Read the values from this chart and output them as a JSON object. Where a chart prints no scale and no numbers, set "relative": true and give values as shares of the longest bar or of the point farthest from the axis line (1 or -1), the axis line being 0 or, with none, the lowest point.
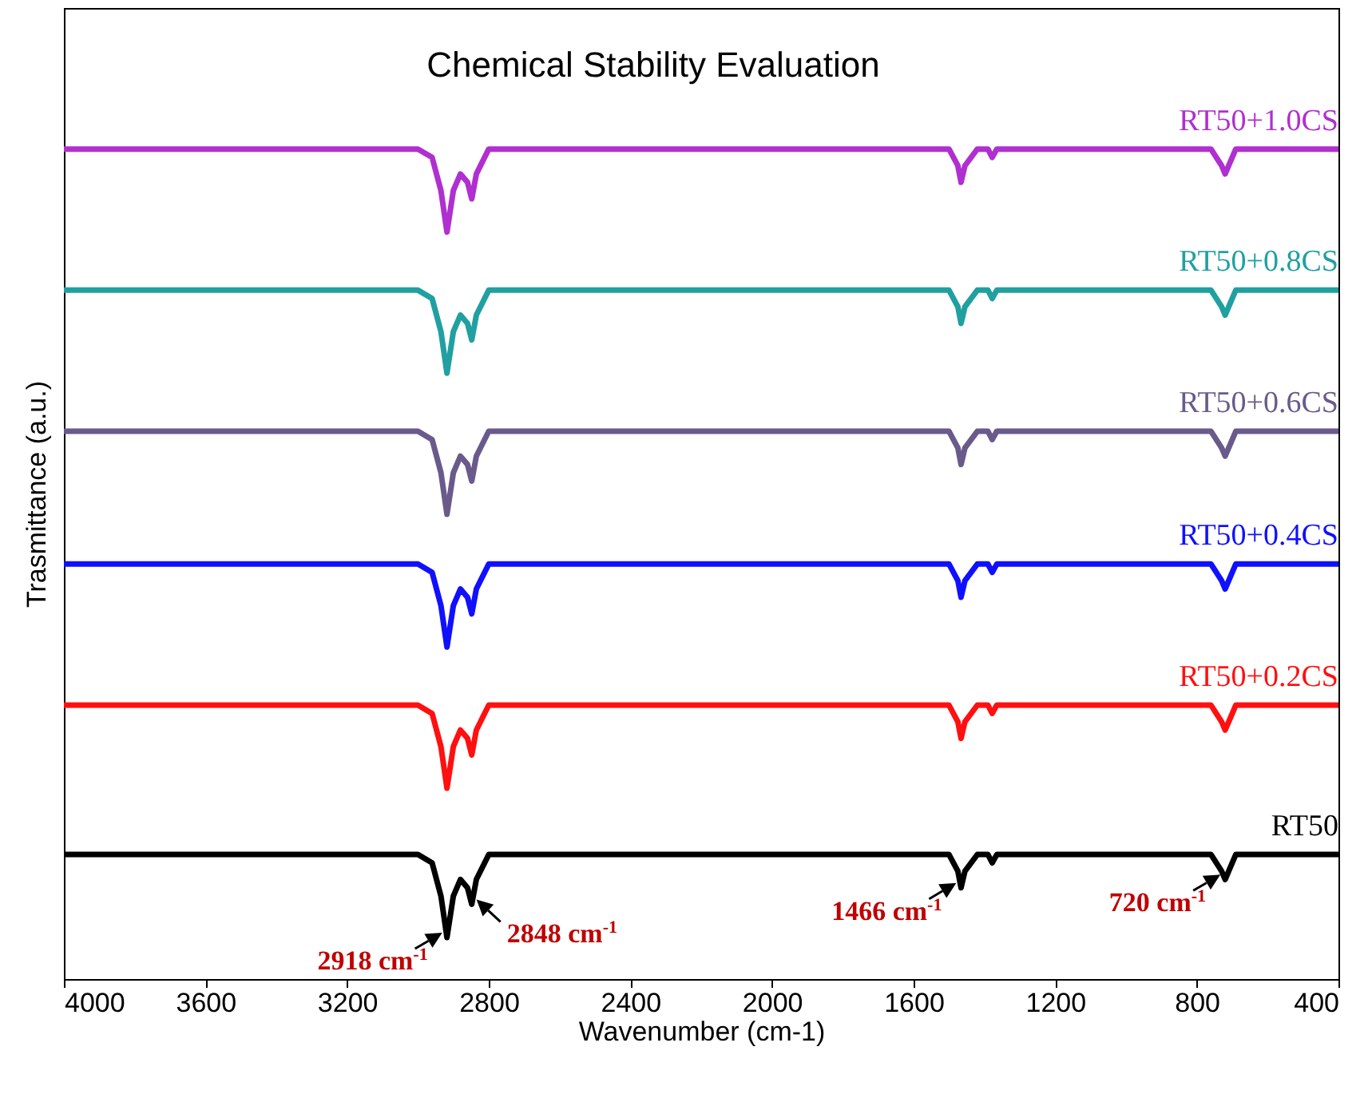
{
  "chart_data": {
    "type": "line",
    "title": "Chemical Stability Evaluation",
    "xlabel": "Wavenumber (cm-1)",
    "ylabel": "Trasmittance (a.u.)",
    "relative": true,
    "legend": false,
    "grid": false,
    "xlim": [
      4000,
      400
    ],
    "xticks": [
      4000,
      3600,
      3200,
      2800,
      2400,
      2000,
      1600,
      1200,
      800,
      400
    ],
    "x": [
      4000,
      3700,
      3000,
      2960,
      2935,
      2918,
      2900,
      2880,
      2860,
      2848,
      2835,
      2800,
      1500,
      1475,
      1466,
      1455,
      1420,
      1390,
      1378,
      1365,
      1340,
      760,
      730,
      720,
      710,
      690,
      400
    ],
    "series": [
      {
        "name": "RT50+1.0CS",
        "color": "#b02fd0",
        "values": [
          1,
          1,
          1,
          0.99,
          0.95,
          0.9,
          0.95,
          0.97,
          0.96,
          0.94,
          0.97,
          1,
          1,
          0.98,
          0.96,
          0.98,
          1,
          1,
          0.99,
          1,
          1,
          1,
          0.98,
          0.97,
          0.98,
          1,
          1
        ]
      },
      {
        "name": "RT50+0.8CS",
        "color": "#20a0a0",
        "values": [
          0.83,
          0.83,
          0.83,
          0.82,
          0.78,
          0.73,
          0.78,
          0.8,
          0.79,
          0.77,
          0.8,
          0.83,
          0.83,
          0.81,
          0.79,
          0.81,
          0.83,
          0.83,
          0.82,
          0.83,
          0.83,
          0.83,
          0.81,
          0.8,
          0.81,
          0.83,
          0.83
        ]
      },
      {
        "name": "RT50+0.6CS",
        "color": "#6a5a8c",
        "values": [
          0.66,
          0.66,
          0.66,
          0.65,
          0.61,
          0.56,
          0.61,
          0.63,
          0.62,
          0.6,
          0.63,
          0.66,
          0.66,
          0.64,
          0.62,
          0.64,
          0.66,
          0.66,
          0.65,
          0.66,
          0.66,
          0.66,
          0.64,
          0.63,
          0.64,
          0.66,
          0.66
        ]
      },
      {
        "name": "RT50+0.4CS",
        "color": "#1010ff",
        "values": [
          0.5,
          0.5,
          0.5,
          0.49,
          0.45,
          0.4,
          0.45,
          0.47,
          0.46,
          0.44,
          0.47,
          0.5,
          0.5,
          0.48,
          0.46,
          0.48,
          0.5,
          0.5,
          0.49,
          0.5,
          0.5,
          0.5,
          0.48,
          0.47,
          0.48,
          0.5,
          0.5
        ]
      },
      {
        "name": "RT50+0.2CS",
        "color": "#ff1010",
        "values": [
          0.33,
          0.33,
          0.33,
          0.32,
          0.28,
          0.23,
          0.28,
          0.3,
          0.29,
          0.27,
          0.3,
          0.33,
          0.33,
          0.31,
          0.29,
          0.31,
          0.33,
          0.33,
          0.32,
          0.33,
          0.33,
          0.33,
          0.31,
          0.3,
          0.31,
          0.33,
          0.33
        ]
      },
      {
        "name": "RT50",
        "color": "#000000",
        "values": [
          0.15,
          0.15,
          0.15,
          0.14,
          0.1,
          0.05,
          0.1,
          0.12,
          0.11,
          0.09,
          0.12,
          0.15,
          0.15,
          0.13,
          0.11,
          0.13,
          0.15,
          0.15,
          0.14,
          0.15,
          0.15,
          0.15,
          0.13,
          0.12,
          0.13,
          0.15,
          0.15
        ]
      }
    ],
    "annotations": [
      {
        "text": "2918 cm$^{-1}$",
        "x": 2918,
        "y": 0.05
      },
      {
        "text": "2848 cm$^{-1}$",
        "x": 2848,
        "y": 0.09
      },
      {
        "text": "1466 cm$^{-1}$",
        "x": 1466,
        "y": 0.11
      },
      {
        "text": "720 cm$^{-1}$",
        "x": 720,
        "y": 0.12
      }
    ]
  }
}
